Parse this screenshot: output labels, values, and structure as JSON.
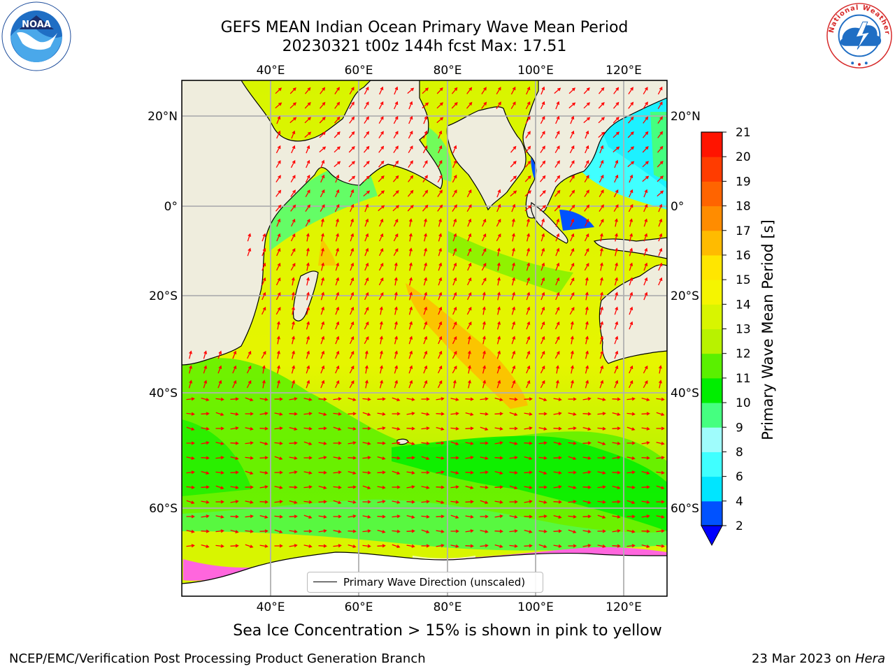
{
  "title_line1": "GEFS MEAN Indian Ocean Primary Wave Mean Period",
  "title_line2": "20230321 t00z 144h fcst   Max: 17.51",
  "logos": {
    "left": "NOAA",
    "right": "National Weather Service"
  },
  "map": {
    "lon_labels": [
      "40°E",
      "60°E",
      "80°E",
      "100°E",
      "120°E"
    ],
    "lat_labels": [
      "20°N",
      "0°",
      "20°S",
      "40°S",
      "60°S"
    ],
    "lon_range": [
      20,
      130
    ],
    "lat_range": [
      -75,
      28
    ],
    "gridlines": true,
    "legend": "Primary Wave Direction (unscaled)",
    "arrow_color": "#ff0000"
  },
  "colorbar": {
    "label": "Primary Wave Mean Period [s]",
    "ticks": [
      "2",
      "4",
      "6",
      "8",
      "9",
      "10",
      "11",
      "12",
      "13",
      "14",
      "15",
      "16",
      "17",
      "18",
      "19",
      "20",
      "21"
    ],
    "colors": [
      "#0052ff",
      "#00e5ff",
      "#40ffff",
      "#9ffcfc",
      "#45ff80",
      "#00ee00",
      "#5af000",
      "#b8f200",
      "#d8f500",
      "#f5f500",
      "#ffe600",
      "#ffbb00",
      "#ff8c00",
      "#ff6400",
      "#ff3c00",
      "#ff1400"
    ],
    "extend_color": "#0000ff"
  },
  "sea_ice_note": "Sea Ice Concentration > 15% is shown in pink to yellow",
  "footer_left": "NCEP/EMC/Verification Post Processing Product Generation Branch",
  "footer_date": "23 Mar 2023 on",
  "footer_machine": "Hera"
}
